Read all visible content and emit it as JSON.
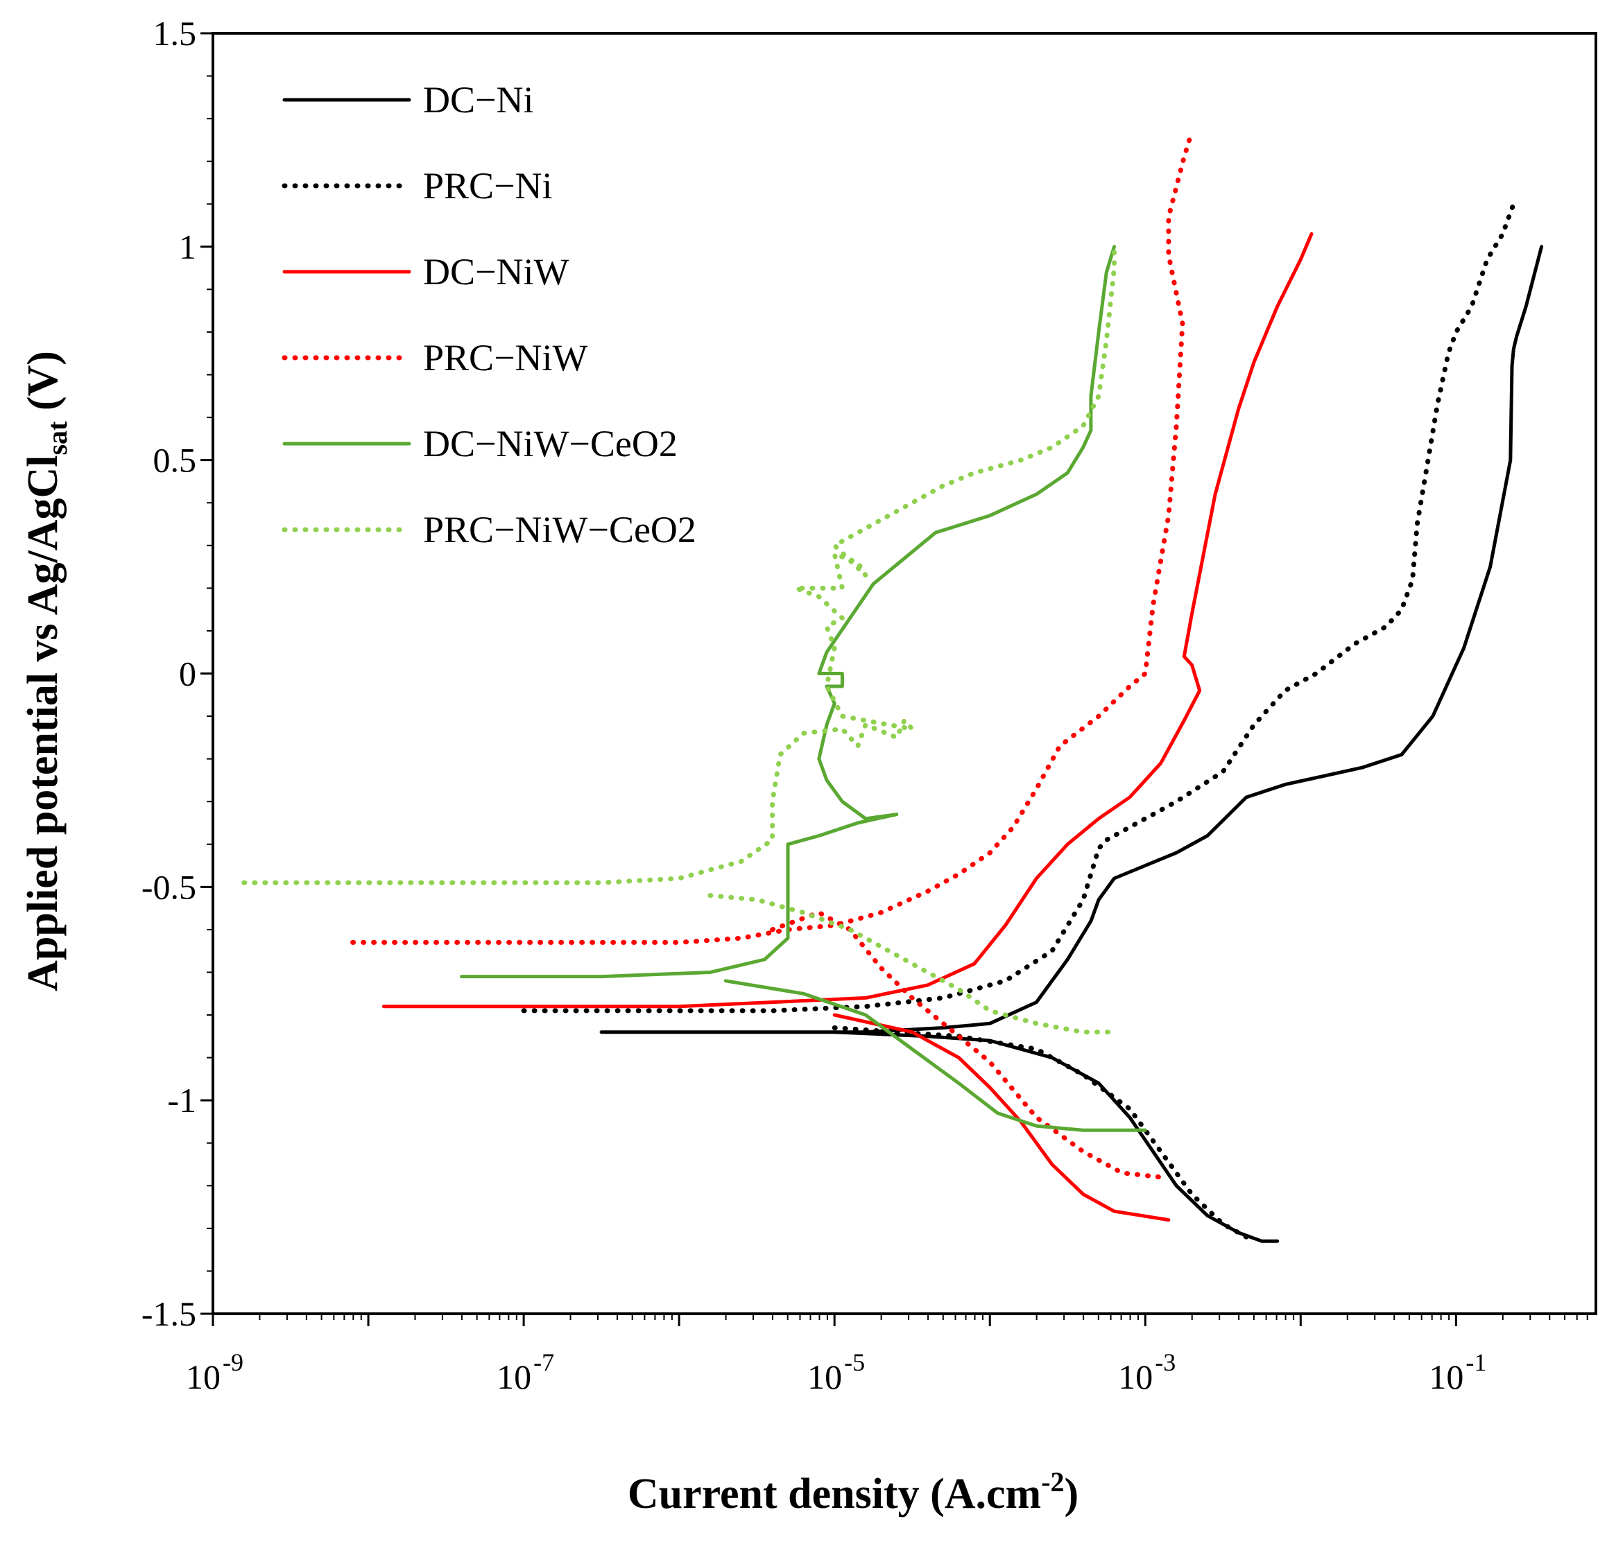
{
  "chart_data": {
    "type": "line",
    "title": "",
    "xlabel": "Current  density (A.cm",
    "xlabel_sup": "-2",
    "xlabel_end": ")",
    "ylabel": "Applied  potential  vs Ag/AgCl",
    "ylabel_sub": "sat",
    "ylabel_end": " (V)",
    "x_scale": "log",
    "x_log_range": [
      -9,
      -0.1
    ],
    "ylim": [
      -1.5,
      1.5
    ],
    "x_tick_exponents": [
      "-9",
      "-7",
      "-5",
      "-3",
      "-1"
    ],
    "x_tick_base": "10",
    "y_ticks": [
      "1.5",
      "1",
      "0.5",
      "0",
      "-0.5",
      "-1",
      "-1.5"
    ],
    "y_tick_values": [
      1.5,
      1,
      0.5,
      0,
      -0.5,
      -1,
      -1.5
    ],
    "grid": false,
    "legend_position": "top-left",
    "series": [
      {
        "name": "DC−Ni",
        "color": "#000000",
        "style": "solid",
        "points": [
          [
            -6.5,
            -0.84
          ],
          [
            -5.5,
            -0.84
          ],
          [
            -4.8,
            -0.84
          ],
          [
            -4.3,
            -0.83
          ],
          [
            -4.0,
            -0.82
          ],
          [
            -3.7,
            -0.77
          ],
          [
            -3.5,
            -0.67
          ],
          [
            -3.35,
            -0.58
          ],
          [
            -3.3,
            -0.53
          ],
          [
            -3.2,
            -0.48
          ],
          [
            -3.0,
            -0.45
          ],
          [
            -2.8,
            -0.42
          ],
          [
            -2.6,
            -0.38
          ],
          [
            -2.35,
            -0.29
          ],
          [
            -2.1,
            -0.26
          ],
          [
            -1.85,
            -0.24
          ],
          [
            -1.6,
            -0.22
          ],
          [
            -1.35,
            -0.19
          ],
          [
            -1.15,
            -0.1
          ],
          [
            -0.95,
            0.06
          ],
          [
            -0.78,
            0.25
          ],
          [
            -0.65,
            0.5
          ],
          [
            -0.64,
            0.72
          ],
          [
            -0.63,
            0.76
          ],
          [
            -0.61,
            0.79
          ],
          [
            -0.55,
            0.86
          ],
          [
            -0.45,
            1.0
          ]
        ],
        "cathodic": [
          [
            -5.0,
            -0.84
          ],
          [
            -4.4,
            -0.85
          ],
          [
            -4.0,
            -0.86
          ],
          [
            -3.6,
            -0.9
          ],
          [
            -3.3,
            -0.96
          ],
          [
            -3.1,
            -1.04
          ],
          [
            -2.95,
            -1.12
          ],
          [
            -2.8,
            -1.2
          ],
          [
            -2.6,
            -1.27
          ],
          [
            -2.4,
            -1.31
          ],
          [
            -2.25,
            -1.33
          ],
          [
            -2.15,
            -1.33
          ]
        ]
      },
      {
        "name": "PRC−Ni",
        "color": "#000000",
        "style": "dotted",
        "points": [
          [
            -7.0,
            -0.79
          ],
          [
            -6.2,
            -0.79
          ],
          [
            -5.4,
            -0.79
          ],
          [
            -4.8,
            -0.78
          ],
          [
            -4.3,
            -0.76
          ],
          [
            -3.9,
            -0.72
          ],
          [
            -3.6,
            -0.65
          ],
          [
            -3.4,
            -0.53
          ],
          [
            -3.3,
            -0.41
          ],
          [
            -3.25,
            -0.39
          ],
          [
            -3.1,
            -0.36
          ],
          [
            -2.8,
            -0.3
          ],
          [
            -2.5,
            -0.23
          ],
          [
            -2.3,
            -0.12
          ],
          [
            -2.1,
            -0.04
          ],
          [
            -1.9,
            0.0
          ],
          [
            -1.65,
            0.07
          ],
          [
            -1.45,
            0.11
          ],
          [
            -1.35,
            0.15
          ],
          [
            -1.28,
            0.22
          ],
          [
            -1.25,
            0.35
          ],
          [
            -1.18,
            0.5
          ],
          [
            -1.12,
            0.63
          ],
          [
            -1.05,
            0.75
          ],
          [
            -1.0,
            0.8
          ],
          [
            -0.9,
            0.86
          ],
          [
            -0.8,
            0.97
          ],
          [
            -0.7,
            1.03
          ],
          [
            -0.62,
            1.11
          ]
        ],
        "cathodic": [
          [
            -5.0,
            -0.83
          ],
          [
            -4.2,
            -0.85
          ],
          [
            -3.7,
            -0.88
          ],
          [
            -3.4,
            -0.94
          ],
          [
            -3.1,
            -1.02
          ],
          [
            -2.9,
            -1.12
          ],
          [
            -2.7,
            -1.22
          ],
          [
            -2.5,
            -1.29
          ],
          [
            -2.3,
            -1.33
          ]
        ]
      },
      {
        "name": "DC−NiW",
        "color": "#ff0000",
        "style": "solid",
        "points": [
          [
            -7.9,
            -0.78
          ],
          [
            -7.0,
            -0.78
          ],
          [
            -6.0,
            -0.78
          ],
          [
            -5.4,
            -0.77
          ],
          [
            -4.8,
            -0.76
          ],
          [
            -4.4,
            -0.73
          ],
          [
            -4.1,
            -0.68
          ],
          [
            -3.9,
            -0.59
          ],
          [
            -3.7,
            -0.48
          ],
          [
            -3.5,
            -0.4
          ],
          [
            -3.3,
            -0.34
          ],
          [
            -3.1,
            -0.29
          ],
          [
            -2.9,
            -0.21
          ],
          [
            -2.75,
            -0.11
          ],
          [
            -2.65,
            -0.04
          ],
          [
            -2.7,
            0.02
          ],
          [
            -2.75,
            0.04
          ],
          [
            -2.7,
            0.14
          ],
          [
            -2.55,
            0.42
          ],
          [
            -2.4,
            0.62
          ],
          [
            -2.3,
            0.73
          ],
          [
            -2.15,
            0.86
          ],
          [
            -2.0,
            0.97
          ],
          [
            -1.93,
            1.03
          ]
        ],
        "cathodic": [
          [
            -5.0,
            -0.8
          ],
          [
            -4.5,
            -0.84
          ],
          [
            -4.2,
            -0.9
          ],
          [
            -4.0,
            -0.97
          ],
          [
            -3.8,
            -1.05
          ],
          [
            -3.6,
            -1.15
          ],
          [
            -3.4,
            -1.22
          ],
          [
            -3.2,
            -1.26
          ],
          [
            -2.85,
            -1.28
          ]
        ]
      },
      {
        "name": "PRC−NiW",
        "color": "#ff0000",
        "style": "dotted",
        "points": [
          [
            -8.1,
            -0.63
          ],
          [
            -7.0,
            -0.63
          ],
          [
            -6.0,
            -0.63
          ],
          [
            -5.6,
            -0.62
          ],
          [
            -5.3,
            -0.6
          ],
          [
            -5.0,
            -0.59
          ],
          [
            -4.7,
            -0.56
          ],
          [
            -4.4,
            -0.51
          ],
          [
            -4.2,
            -0.47
          ],
          [
            -4.0,
            -0.42
          ],
          [
            -3.85,
            -0.36
          ],
          [
            -3.7,
            -0.27
          ],
          [
            -3.55,
            -0.17
          ],
          [
            -3.3,
            -0.1
          ],
          [
            -3.1,
            -0.03
          ],
          [
            -3.0,
            0.0
          ],
          [
            -2.95,
            0.16
          ],
          [
            -2.85,
            0.37
          ],
          [
            -2.8,
            0.58
          ],
          [
            -2.76,
            0.82
          ],
          [
            -2.85,
            0.98
          ],
          [
            -2.85,
            1.07
          ],
          [
            -2.75,
            1.21
          ],
          [
            -2.7,
            1.27
          ]
        ],
        "cathodic": [
          [
            -5.4,
            -0.6
          ],
          [
            -5.1,
            -0.56
          ],
          [
            -4.9,
            -0.6
          ],
          [
            -4.7,
            -0.69
          ],
          [
            -4.5,
            -0.76
          ],
          [
            -4.3,
            -0.82
          ],
          [
            -4.0,
            -0.91
          ],
          [
            -3.7,
            -1.04
          ],
          [
            -3.4,
            -1.12
          ],
          [
            -3.15,
            -1.17
          ],
          [
            -2.9,
            -1.18
          ]
        ]
      },
      {
        "name": "DC−NiW−CeO2",
        "color": "#5aa832",
        "style": "solid",
        "points": [
          [
            -7.4,
            -0.71
          ],
          [
            -6.5,
            -0.71
          ],
          [
            -5.8,
            -0.7
          ],
          [
            -5.45,
            -0.67
          ],
          [
            -5.3,
            -0.62
          ],
          [
            -5.3,
            -0.5
          ],
          [
            -5.3,
            -0.4
          ],
          [
            -5.1,
            -0.38
          ],
          [
            -4.85,
            -0.35
          ],
          [
            -4.6,
            -0.33
          ],
          [
            -4.8,
            -0.34
          ],
          [
            -4.95,
            -0.3
          ],
          [
            -5.05,
            -0.25
          ],
          [
            -5.1,
            -0.2
          ],
          [
            -5.05,
            -0.12
          ],
          [
            -5.0,
            -0.07
          ],
          [
            -5.05,
            -0.03
          ],
          [
            -4.95,
            -0.03
          ],
          [
            -4.95,
            0.0
          ],
          [
            -5.1,
            0.0
          ],
          [
            -5.05,
            0.05
          ],
          [
            -4.9,
            0.13
          ],
          [
            -4.75,
            0.21
          ],
          [
            -4.55,
            0.27
          ],
          [
            -4.35,
            0.33
          ],
          [
            -4.0,
            0.37
          ],
          [
            -3.7,
            0.42
          ],
          [
            -3.5,
            0.47
          ],
          [
            -3.4,
            0.53
          ],
          [
            -3.35,
            0.57
          ],
          [
            -3.35,
            0.65
          ],
          [
            -3.3,
            0.8
          ],
          [
            -3.25,
            0.94
          ],
          [
            -3.2,
            1.0
          ]
        ],
        "cathodic": [
          [
            -5.7,
            -0.72
          ],
          [
            -5.2,
            -0.75
          ],
          [
            -4.8,
            -0.8
          ],
          [
            -4.5,
            -0.88
          ],
          [
            -4.2,
            -0.96
          ],
          [
            -3.95,
            -1.03
          ],
          [
            -3.7,
            -1.06
          ],
          [
            -3.4,
            -1.07
          ],
          [
            -3.0,
            -1.07
          ]
        ]
      },
      {
        "name": "PRC−NiW−CeO2",
        "color": "#8fd14f",
        "style": "dotted",
        "points": [
          [
            -8.8,
            -0.49
          ],
          [
            -7.5,
            -0.49
          ],
          [
            -6.5,
            -0.49
          ],
          [
            -6.0,
            -0.48
          ],
          [
            -5.6,
            -0.44
          ],
          [
            -5.4,
            -0.39
          ],
          [
            -5.4,
            -0.3
          ],
          [
            -5.35,
            -0.19
          ],
          [
            -5.2,
            -0.14
          ],
          [
            -4.95,
            -0.13
          ],
          [
            -4.85,
            -0.17
          ],
          [
            -4.8,
            -0.12
          ],
          [
            -4.6,
            -0.15
          ],
          [
            -4.55,
            -0.11
          ],
          [
            -4.5,
            -0.13
          ],
          [
            -4.95,
            -0.1
          ],
          [
            -5.05,
            -0.03
          ],
          [
            -5.0,
            0.06
          ],
          [
            -5.05,
            0.11
          ],
          [
            -4.95,
            0.13
          ],
          [
            -5.1,
            0.18
          ],
          [
            -5.25,
            0.2
          ],
          [
            -4.95,
            0.2
          ],
          [
            -5.0,
            0.28
          ],
          [
            -4.85,
            0.26
          ],
          [
            -4.8,
            0.23
          ],
          [
            -5.0,
            0.3
          ],
          [
            -4.65,
            0.37
          ],
          [
            -4.5,
            0.4
          ],
          [
            -4.3,
            0.44
          ],
          [
            -4.1,
            0.47
          ],
          [
            -3.8,
            0.5
          ],
          [
            -3.6,
            0.53
          ],
          [
            -3.4,
            0.58
          ],
          [
            -3.3,
            0.65
          ],
          [
            -3.25,
            0.78
          ],
          [
            -3.2,
            0.95
          ],
          [
            -3.2,
            1.0
          ]
        ],
        "cathodic": [
          [
            -5.8,
            -0.52
          ],
          [
            -5.5,
            -0.53
          ],
          [
            -5.2,
            -0.56
          ],
          [
            -4.9,
            -0.6
          ],
          [
            -4.7,
            -0.64
          ],
          [
            -4.5,
            -0.68
          ],
          [
            -4.2,
            -0.74
          ],
          [
            -4.0,
            -0.79
          ],
          [
            -3.7,
            -0.82
          ],
          [
            -3.4,
            -0.84
          ],
          [
            -3.2,
            -0.84
          ]
        ]
      }
    ]
  }
}
